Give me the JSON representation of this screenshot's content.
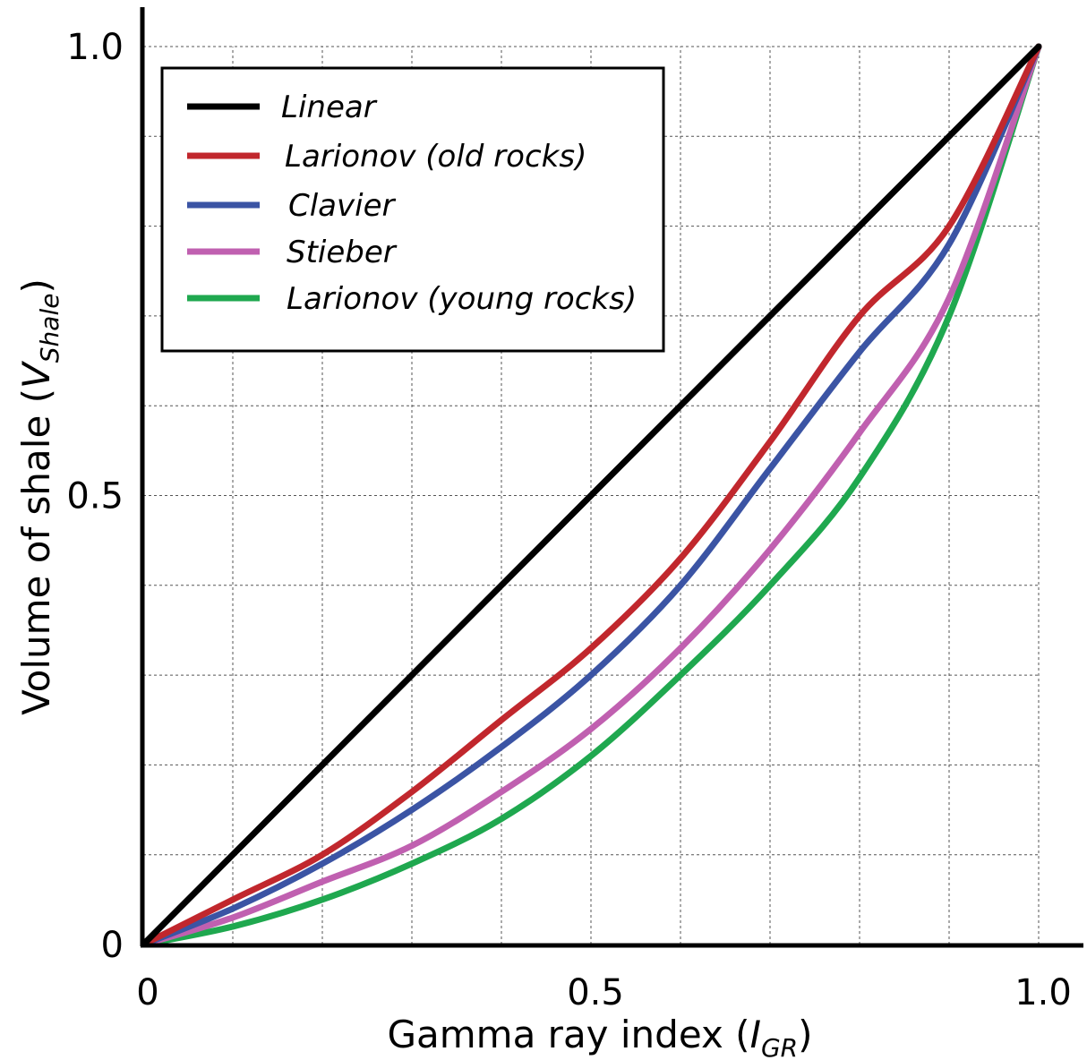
{
  "chart_data": {
    "type": "line",
    "xlabel": "Gamma ray index",
    "xlabel_symbol": "I",
    "xlabel_subscript": "GR",
    "ylabel": "Volume of shale",
    "ylabel_symbol": "V",
    "ylabel_subscript": "Shale",
    "xlim": [
      0,
      1
    ],
    "ylim": [
      0,
      1
    ],
    "x_ticks": [
      {
        "value": 0,
        "label": "0"
      },
      {
        "value": 0.5,
        "label": "0.5"
      },
      {
        "value": 1,
        "label": "1.0"
      }
    ],
    "y_ticks": [
      {
        "value": 0,
        "label": "0"
      },
      {
        "value": 0.5,
        "label": "0.5"
      },
      {
        "value": 1,
        "label": "1.0"
      }
    ],
    "grid": true,
    "grid_step": 0.1,
    "legend_position": "top-left",
    "x": [
      0,
      0.1,
      0.2,
      0.3,
      0.4,
      0.5,
      0.6,
      0.7,
      0.8,
      0.9,
      1.0
    ],
    "series": [
      {
        "name": "Linear",
        "color": "#000000",
        "values": [
          0,
          0.1,
          0.2,
          0.3,
          0.4,
          0.5,
          0.6,
          0.7,
          0.8,
          0.9,
          1.0
        ]
      },
      {
        "name": "Larionov (old rocks)",
        "color": "#c1272d",
        "values": [
          0,
          0.05,
          0.1,
          0.17,
          0.25,
          0.33,
          0.43,
          0.56,
          0.7,
          0.8,
          1.0
        ]
      },
      {
        "name": "Clavier",
        "color": "#3b54a4",
        "values": [
          0,
          0.04,
          0.09,
          0.15,
          0.22,
          0.3,
          0.4,
          0.53,
          0.66,
          0.78,
          1.0
        ]
      },
      {
        "name": "Stieber",
        "color": "#c060b0",
        "values": [
          0,
          0.03,
          0.07,
          0.11,
          0.17,
          0.24,
          0.33,
          0.44,
          0.57,
          0.72,
          1.0
        ]
      },
      {
        "name": "Larionov (young rocks)",
        "color": "#1fa84f",
        "values": [
          0,
          0.02,
          0.05,
          0.09,
          0.14,
          0.21,
          0.3,
          0.4,
          0.52,
          0.7,
          1.0
        ]
      }
    ]
  }
}
